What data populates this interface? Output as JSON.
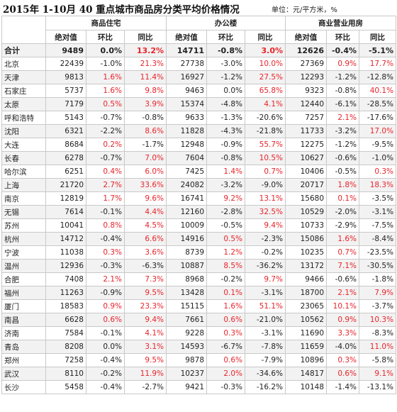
{
  "title": "2015年 1-10月 40 重点城市商品房分类平均价格情况",
  "unit": "单位：元/平方米，%",
  "groups": [
    "商品住宅",
    "办公楼",
    "商业营业用房"
  ],
  "subheads": [
    "绝对值",
    "环比",
    "同比"
  ],
  "highlight_color": "#e8242b",
  "total": {
    "city": "合计",
    "cells": [
      [
        "9489",
        "0.0%",
        "13.2%"
      ],
      [
        "14711",
        "-0.8%",
        "3.0%"
      ],
      [
        "12626",
        "-0.4%",
        "-5.1%"
      ]
    ]
  },
  "rows": [
    {
      "city": "北京",
      "cells": [
        [
          "22439",
          "-1.0%",
          "21.3%"
        ],
        [
          "27738",
          "-3.0%",
          "10.0%"
        ],
        [
          "27369",
          "0.9%",
          "17.7%"
        ]
      ]
    },
    {
      "city": "天津",
      "cells": [
        [
          "9813",
          "1.6%",
          "11.4%"
        ],
        [
          "16927",
          "-1.2%",
          "27.5%"
        ],
        [
          "12293",
          "-1.2%",
          "-12.8%"
        ]
      ]
    },
    {
      "city": "石家庄",
      "cells": [
        [
          "5737",
          "1.6%",
          "9.8%"
        ],
        [
          "9463",
          "0.0%",
          "65.8%"
        ],
        [
          "9323",
          "-0.8%",
          "40.1%"
        ]
      ]
    },
    {
      "city": "太原",
      "cells": [
        [
          "7179",
          "0.5%",
          "3.9%"
        ],
        [
          "15374",
          "-4.8%",
          "4.1%"
        ],
        [
          "12440",
          "-6.1%",
          "-28.5%"
        ]
      ]
    },
    {
      "city": "呼和浩特",
      "cells": [
        [
          "5143",
          "-0.7%",
          "-0.8%"
        ],
        [
          "9633",
          "-1.3%",
          "-20.6%"
        ],
        [
          "7257",
          "2.1%",
          "-17.6%"
        ]
      ]
    },
    {
      "city": "沈阳",
      "cells": [
        [
          "6321",
          "-2.2%",
          "8.6%"
        ],
        [
          "11828",
          "-4.3%",
          "-21.8%"
        ],
        [
          "11733",
          "-3.2%",
          "17.0%"
        ]
      ]
    },
    {
      "city": "大连",
      "cells": [
        [
          "8684",
          "0.2%",
          "-1.7%"
        ],
        [
          "12948",
          "-0.9%",
          "55.7%"
        ],
        [
          "12275",
          "-1.2%",
          "-9.5%"
        ]
      ]
    },
    {
      "city": "长春",
      "cells": [
        [
          "6278",
          "-0.7%",
          "7.0%"
        ],
        [
          "7604",
          "-0.8%",
          "10.5%"
        ],
        [
          "10627",
          "-0.6%",
          "-1.0%"
        ]
      ]
    },
    {
      "city": "哈尔滨",
      "cells": [
        [
          "6251",
          "0.4%",
          "6.0%"
        ],
        [
          "7425",
          "1.4%",
          "0.7%"
        ],
        [
          "10406",
          "-0.5%",
          "0.3%"
        ]
      ]
    },
    {
      "city": "上海",
      "cells": [
        [
          "21720",
          "2.7%",
          "33.6%"
        ],
        [
          "24082",
          "-3.2%",
          "-9.0%"
        ],
        [
          "20717",
          "1.8%",
          "18.3%"
        ]
      ]
    },
    {
      "city": "南京",
      "cells": [
        [
          "12819",
          "1.7%",
          "9.6%"
        ],
        [
          "16741",
          "9.2%",
          "13.1%"
        ],
        [
          "15680",
          "0.1%",
          "-3.5%"
        ]
      ]
    },
    {
      "city": "无锡",
      "cells": [
        [
          "7614",
          "-0.1%",
          "4.4%"
        ],
        [
          "12160",
          "-2.8%",
          "32.5%"
        ],
        [
          "10529",
          "-2.0%",
          "-3.1%"
        ]
      ]
    },
    {
      "city": "苏州",
      "cells": [
        [
          "10041",
          "0.8%",
          "4.5%"
        ],
        [
          "10009",
          "-0.5%",
          "9.4%"
        ],
        [
          "10733",
          "-2.9%",
          "-7.5%"
        ]
      ]
    },
    {
      "city": "杭州",
      "cells": [
        [
          "14712",
          "-0.4%",
          "6.6%"
        ],
        [
          "14916",
          "0.5%",
          "-2.3%"
        ],
        [
          "15086",
          "1.6%",
          "-8.4%"
        ]
      ]
    },
    {
      "city": "宁波",
      "cells": [
        [
          "11038",
          "0.3%",
          "3.6%"
        ],
        [
          "8739",
          "1.2%",
          "-0.2%"
        ],
        [
          "10235",
          "0.7%",
          "-23.5%"
        ]
      ]
    },
    {
      "city": "温州",
      "cells": [
        [
          "12936",
          "-0.3%",
          "-6.3%"
        ],
        [
          "10887",
          "8.5%",
          "-36.2%"
        ],
        [
          "13172",
          "7.1%",
          "-30.5%"
        ]
      ]
    },
    {
      "city": "合肥",
      "cells": [
        [
          "7408",
          "2.1%",
          "7.3%"
        ],
        [
          "8968",
          "-0.2%",
          "9.7%"
        ],
        [
          "9466",
          "-0.6%",
          "-1.8%"
        ]
      ]
    },
    {
      "city": "福州",
      "cells": [
        [
          "11263",
          "-0.9%",
          "9.5%"
        ],
        [
          "13428",
          "0.1%",
          "-3.1%"
        ],
        [
          "18700",
          "2.1%",
          "7.9%"
        ]
      ]
    },
    {
      "city": "厦门",
      "cells": [
        [
          "18583",
          "0.9%",
          "23.3%"
        ],
        [
          "15115",
          "1.6%",
          "51.1%"
        ],
        [
          "23065",
          "10.1%",
          "-3.7%"
        ]
      ]
    },
    {
      "city": "南昌",
      "cells": [
        [
          "6628",
          "0.6%",
          "9.4%"
        ],
        [
          "7661",
          "0.6%",
          "-21.0%"
        ],
        [
          "10562",
          "0.9%",
          "10.3%"
        ]
      ]
    },
    {
      "city": "济南",
      "cells": [
        [
          "7584",
          "-0.1%",
          "4.1%"
        ],
        [
          "9228",
          "0.3%",
          "-3.1%"
        ],
        [
          "11690",
          "3.3%",
          "-8.3%"
        ]
      ]
    },
    {
      "city": "青岛",
      "cells": [
        [
          "8208",
          "0.0%",
          "3.1%"
        ],
        [
          "14593",
          "-6.7%",
          "-7.8%"
        ],
        [
          "11659",
          "-4.0%",
          "11.0%"
        ]
      ]
    },
    {
      "city": "郑州",
      "cells": [
        [
          "7258",
          "-0.4%",
          "9.5%"
        ],
        [
          "9878",
          "0.6%",
          "-7.9%"
        ],
        [
          "10896",
          "0.3%",
          "-5.8%"
        ]
      ]
    },
    {
      "city": "武汉",
      "cells": [
        [
          "8110",
          "-0.2%",
          "11.9%"
        ],
        [
          "10237",
          "2.0%",
          "-34.6%"
        ],
        [
          "14817",
          "0.6%",
          "9.1%"
        ]
      ]
    },
    {
      "city": "长沙",
      "cells": [
        [
          "5458",
          "-0.4%",
          "-2.7%"
        ],
        [
          "9421",
          "-0.3%",
          "-16.2%"
        ],
        [
          "10148",
          "-1.4%",
          "-13.1%"
        ]
      ]
    }
  ]
}
